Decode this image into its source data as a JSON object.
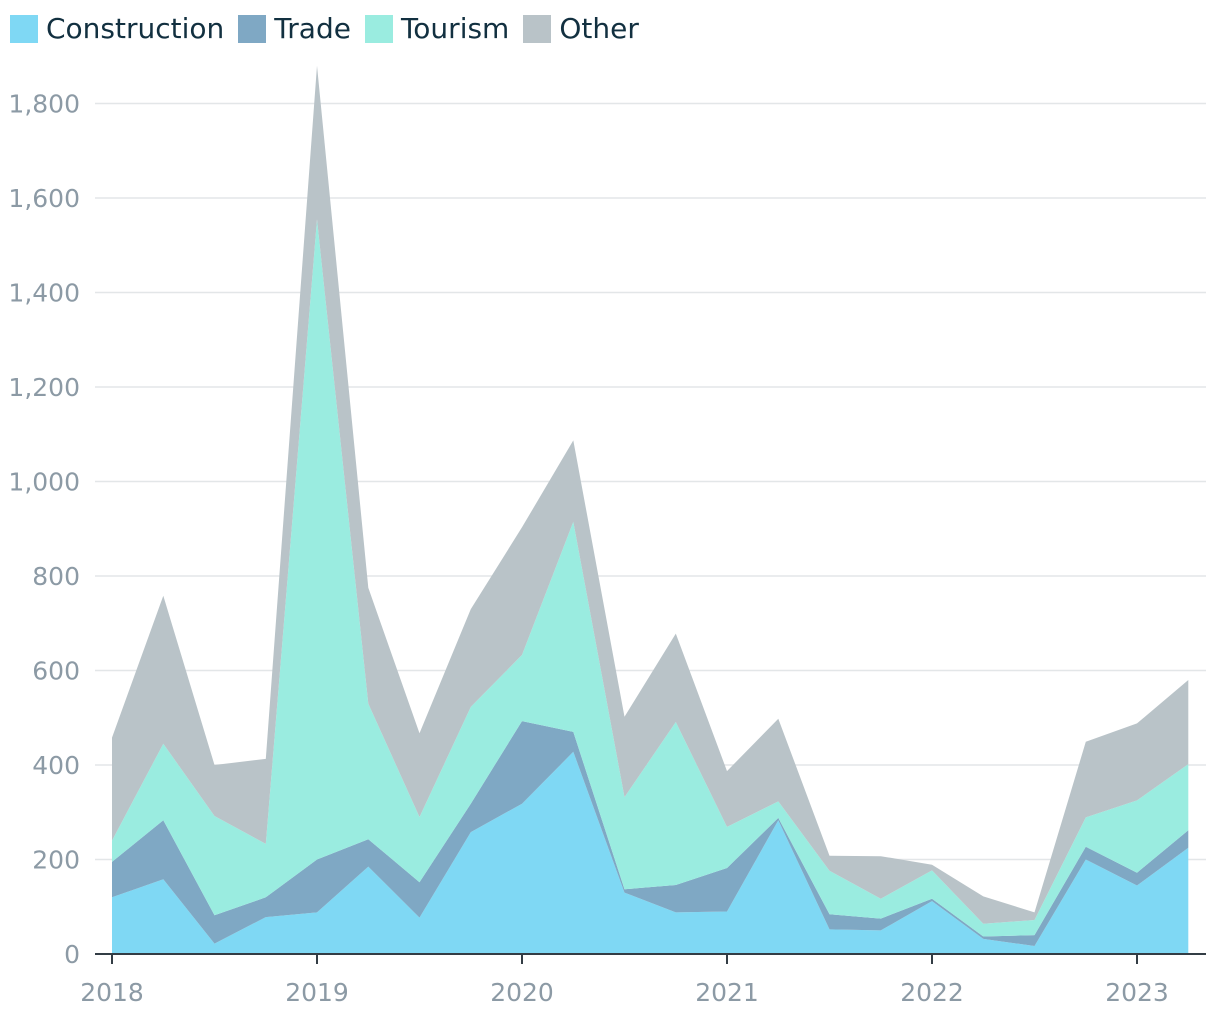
{
  "chart_data": {
    "type": "area",
    "stacked": true,
    "title": "",
    "xlabel": "",
    "ylabel": "",
    "ylim": [
      0,
      1880
    ],
    "yticks": [
      0,
      200,
      400,
      600,
      800,
      1000,
      1200,
      1400,
      1600,
      1800
    ],
    "ytick_labels": [
      "0",
      "200",
      "400",
      "600",
      "800",
      "1,000",
      "1,200",
      "1,400",
      "1,600",
      "1,800"
    ],
    "xlim": [
      2018.0,
      2023.35
    ],
    "xticks": [
      2018,
      2019,
      2020,
      2021,
      2022,
      2023
    ],
    "xtick_labels": [
      "2018",
      "2019",
      "2020",
      "2021",
      "2022",
      "2023"
    ],
    "grid": "horizontal",
    "legend_position": "top-left",
    "x": [
      2018.0,
      2018.25,
      2018.5,
      2018.75,
      2019.0,
      2019.25,
      2019.5,
      2019.75,
      2020.0,
      2020.25,
      2020.5,
      2020.75,
      2021.0,
      2021.25,
      2021.5,
      2021.75,
      2022.0,
      2022.25,
      2022.5,
      2022.75,
      2023.0,
      2023.25
    ],
    "series": [
      {
        "name": "Construction",
        "color": "#7fd8f4",
        "values": [
          120,
          158,
          22,
          78,
          88,
          185,
          77,
          258,
          318,
          428,
          130,
          88,
          90,
          283,
          52,
          50,
          112,
          32,
          17,
          200,
          145,
          225
        ]
      },
      {
        "name": "Trade",
        "color": "#7fa8c4",
        "values": [
          75,
          125,
          60,
          42,
          112,
          58,
          75,
          60,
          175,
          42,
          7,
          58,
          92,
          5,
          32,
          25,
          5,
          5,
          23,
          27,
          27,
          37
        ]
      },
      {
        "name": "Tourism",
        "color": "#9aece0",
        "values": [
          45,
          162,
          210,
          113,
          1355,
          287,
          138,
          205,
          140,
          445,
          195,
          345,
          87,
          35,
          92,
          42,
          60,
          27,
          32,
          62,
          153,
          140
        ]
      },
      {
        "name": "Other",
        "color": "#b9c3c8",
        "values": [
          218,
          313,
          108,
          180,
          325,
          245,
          177,
          207,
          270,
          172,
          170,
          187,
          118,
          175,
          32,
          90,
          12,
          58,
          16,
          160,
          163,
          178
        ]
      }
    ]
  }
}
